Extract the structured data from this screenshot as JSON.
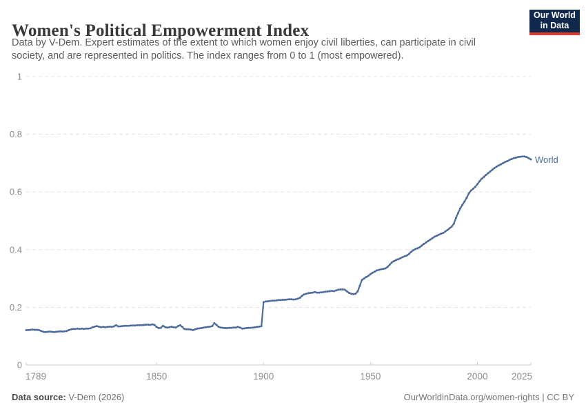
{
  "header": {
    "title": "Women's Political Empowerment Index",
    "subtitle": "Data by V-Dem. Expert estimates of the extent to which women enjoy civil liberties, can participate in civil society, and are represented in politics. The index ranges from 0 to 1 (most empowered).",
    "logo": {
      "line1": "Our World",
      "line2": "in Data"
    }
  },
  "footer": {
    "source_label": "Data source:",
    "source_value": " V-Dem (2026)",
    "credit": "OurWorldinData.org/women-rights | CC BY"
  },
  "colors": {
    "line": "#4C6A9C",
    "grid": "#e1e1e1",
    "axis": "#c9c9c9",
    "tick_label": "#8c8c8c",
    "logo_bg": "#12294E",
    "logo_accent": "#E0392E"
  },
  "chart_data": {
    "type": "line",
    "title": "Women's Political Empowerment Index",
    "xlabel": "",
    "ylabel": "",
    "xlim": [
      1789,
      2025
    ],
    "ylim": [
      0,
      1
    ],
    "grid": "horizontal-dashed",
    "legend_position": "end-of-line",
    "xticks": [
      1789,
      1850,
      1900,
      1950,
      2000,
      2025
    ],
    "xtick_labels": [
      "1789",
      "1850",
      "1900",
      "1950",
      "2000",
      "2025"
    ],
    "yticks": [
      0,
      0.2,
      0.4,
      0.6,
      0.8,
      1
    ],
    "ytick_labels": [
      "0",
      "0.2",
      "0.4",
      "0.6",
      "0.8",
      "1"
    ],
    "series": [
      {
        "name": "World",
        "points": [
          [
            1789,
            0.121
          ],
          [
            1790,
            0.121
          ],
          [
            1791,
            0.122
          ],
          [
            1792,
            0.123
          ],
          [
            1793,
            0.122
          ],
          [
            1794,
            0.122
          ],
          [
            1795,
            0.121
          ],
          [
            1796,
            0.118
          ],
          [
            1797,
            0.115
          ],
          [
            1798,
            0.114
          ],
          [
            1799,
            0.115
          ],
          [
            1800,
            0.116
          ],
          [
            1801,
            0.115
          ],
          [
            1802,
            0.114
          ],
          [
            1803,
            0.115
          ],
          [
            1804,
            0.116
          ],
          [
            1805,
            0.117
          ],
          [
            1806,
            0.116
          ],
          [
            1807,
            0.117
          ],
          [
            1808,
            0.118
          ],
          [
            1809,
            0.121
          ],
          [
            1810,
            0.124
          ],
          [
            1811,
            0.125
          ],
          [
            1812,
            0.125
          ],
          [
            1813,
            0.126
          ],
          [
            1814,
            0.125
          ],
          [
            1815,
            0.126
          ],
          [
            1816,
            0.125
          ],
          [
            1817,
            0.126
          ],
          [
            1818,
            0.126
          ],
          [
            1819,
            0.127
          ],
          [
            1820,
            0.131
          ],
          [
            1821,
            0.133
          ],
          [
            1822,
            0.135
          ],
          [
            1823,
            0.133
          ],
          [
            1824,
            0.131
          ],
          [
            1825,
            0.132
          ],
          [
            1826,
            0.131
          ],
          [
            1827,
            0.132
          ],
          [
            1828,
            0.133
          ],
          [
            1829,
            0.132
          ],
          [
            1830,
            0.134
          ],
          [
            1831,
            0.138
          ],
          [
            1832,
            0.134
          ],
          [
            1833,
            0.134
          ],
          [
            1834,
            0.135
          ],
          [
            1835,
            0.136
          ],
          [
            1836,
            0.136
          ],
          [
            1837,
            0.136
          ],
          [
            1838,
            0.137
          ],
          [
            1839,
            0.137
          ],
          [
            1840,
            0.137
          ],
          [
            1841,
            0.138
          ],
          [
            1842,
            0.138
          ],
          [
            1843,
            0.138
          ],
          [
            1844,
            0.139
          ],
          [
            1845,
            0.14
          ],
          [
            1846,
            0.14
          ],
          [
            1847,
            0.139
          ],
          [
            1848,
            0.141
          ],
          [
            1849,
            0.139
          ],
          [
            1850,
            0.132
          ],
          [
            1851,
            0.128
          ],
          [
            1852,
            0.129
          ],
          [
            1853,
            0.136
          ],
          [
            1854,
            0.131
          ],
          [
            1855,
            0.13
          ],
          [
            1856,
            0.131
          ],
          [
            1857,
            0.133
          ],
          [
            1858,
            0.131
          ],
          [
            1859,
            0.13
          ],
          [
            1860,
            0.135
          ],
          [
            1861,
            0.138
          ],
          [
            1862,
            0.132
          ],
          [
            1863,
            0.125
          ],
          [
            1864,
            0.124
          ],
          [
            1865,
            0.124
          ],
          [
            1866,
            0.123
          ],
          [
            1867,
            0.121
          ],
          [
            1868,
            0.124
          ],
          [
            1869,
            0.126
          ],
          [
            1870,
            0.127
          ],
          [
            1871,
            0.128
          ],
          [
            1872,
            0.13
          ],
          [
            1873,
            0.131
          ],
          [
            1874,
            0.132
          ],
          [
            1875,
            0.133
          ],
          [
            1876,
            0.135
          ],
          [
            1877,
            0.145
          ],
          [
            1878,
            0.139
          ],
          [
            1879,
            0.132
          ],
          [
            1880,
            0.13
          ],
          [
            1881,
            0.129
          ],
          [
            1882,
            0.128
          ],
          [
            1883,
            0.128
          ],
          [
            1884,
            0.129
          ],
          [
            1885,
            0.129
          ],
          [
            1886,
            0.13
          ],
          [
            1887,
            0.13
          ],
          [
            1888,
            0.132
          ],
          [
            1889,
            0.13
          ],
          [
            1890,
            0.126
          ],
          [
            1891,
            0.127
          ],
          [
            1892,
            0.128
          ],
          [
            1893,
            0.129
          ],
          [
            1894,
            0.129
          ],
          [
            1895,
            0.13
          ],
          [
            1896,
            0.131
          ],
          [
            1897,
            0.132
          ],
          [
            1898,
            0.133
          ],
          [
            1899,
            0.135
          ],
          [
            1900,
            0.218
          ],
          [
            1901,
            0.22
          ],
          [
            1902,
            0.221
          ],
          [
            1903,
            0.222
          ],
          [
            1904,
            0.223
          ],
          [
            1905,
            0.223
          ],
          [
            1906,
            0.224
          ],
          [
            1907,
            0.225
          ],
          [
            1908,
            0.225
          ],
          [
            1909,
            0.226
          ],
          [
            1910,
            0.226
          ],
          [
            1911,
            0.227
          ],
          [
            1912,
            0.228
          ],
          [
            1913,
            0.228
          ],
          [
            1914,
            0.227
          ],
          [
            1915,
            0.228
          ],
          [
            1916,
            0.23
          ],
          [
            1917,
            0.233
          ],
          [
            1918,
            0.24
          ],
          [
            1919,
            0.245
          ],
          [
            1920,
            0.247
          ],
          [
            1921,
            0.249
          ],
          [
            1922,
            0.25
          ],
          [
            1923,
            0.251
          ],
          [
            1924,
            0.253
          ],
          [
            1925,
            0.251
          ],
          [
            1926,
            0.251
          ],
          [
            1927,
            0.252
          ],
          [
            1928,
            0.253
          ],
          [
            1929,
            0.254
          ],
          [
            1930,
            0.255
          ],
          [
            1931,
            0.256
          ],
          [
            1932,
            0.257
          ],
          [
            1933,
            0.256
          ],
          [
            1934,
            0.259
          ],
          [
            1935,
            0.261
          ],
          [
            1936,
            0.262
          ],
          [
            1937,
            0.262
          ],
          [
            1938,
            0.261
          ],
          [
            1939,
            0.255
          ],
          [
            1940,
            0.25
          ],
          [
            1941,
            0.247
          ],
          [
            1942,
            0.246
          ],
          [
            1943,
            0.247
          ],
          [
            1944,
            0.255
          ],
          [
            1945,
            0.275
          ],
          [
            1946,
            0.295
          ],
          [
            1947,
            0.3
          ],
          [
            1948,
            0.305
          ],
          [
            1949,
            0.309
          ],
          [
            1950,
            0.315
          ],
          [
            1951,
            0.32
          ],
          [
            1952,
            0.324
          ],
          [
            1953,
            0.328
          ],
          [
            1954,
            0.33
          ],
          [
            1955,
            0.332
          ],
          [
            1956,
            0.333
          ],
          [
            1957,
            0.335
          ],
          [
            1958,
            0.34
          ],
          [
            1959,
            0.348
          ],
          [
            1960,
            0.356
          ],
          [
            1961,
            0.36
          ],
          [
            1962,
            0.364
          ],
          [
            1963,
            0.367
          ],
          [
            1964,
            0.37
          ],
          [
            1965,
            0.374
          ],
          [
            1966,
            0.377
          ],
          [
            1967,
            0.38
          ],
          [
            1968,
            0.385
          ],
          [
            1969,
            0.392
          ],
          [
            1970,
            0.398
          ],
          [
            1971,
            0.402
          ],
          [
            1972,
            0.405
          ],
          [
            1973,
            0.408
          ],
          [
            1974,
            0.414
          ],
          [
            1975,
            0.42
          ],
          [
            1976,
            0.425
          ],
          [
            1977,
            0.43
          ],
          [
            1978,
            0.435
          ],
          [
            1979,
            0.44
          ],
          [
            1980,
            0.445
          ],
          [
            1981,
            0.448
          ],
          [
            1982,
            0.452
          ],
          [
            1983,
            0.455
          ],
          [
            1984,
            0.458
          ],
          [
            1985,
            0.463
          ],
          [
            1986,
            0.468
          ],
          [
            1987,
            0.474
          ],
          [
            1988,
            0.48
          ],
          [
            1989,
            0.49
          ],
          [
            1990,
            0.51
          ],
          [
            1991,
            0.527
          ],
          [
            1992,
            0.543
          ],
          [
            1993,
            0.555
          ],
          [
            1994,
            0.567
          ],
          [
            1995,
            0.58
          ],
          [
            1996,
            0.595
          ],
          [
            1997,
            0.605
          ],
          [
            1998,
            0.611
          ],
          [
            1999,
            0.618
          ],
          [
            2000,
            0.627
          ],
          [
            2001,
            0.637
          ],
          [
            2002,
            0.646
          ],
          [
            2003,
            0.652
          ],
          [
            2004,
            0.659
          ],
          [
            2005,
            0.665
          ],
          [
            2006,
            0.671
          ],
          [
            2007,
            0.677
          ],
          [
            2008,
            0.683
          ],
          [
            2009,
            0.688
          ],
          [
            2010,
            0.692
          ],
          [
            2011,
            0.696
          ],
          [
            2012,
            0.7
          ],
          [
            2013,
            0.704
          ],
          [
            2014,
            0.707
          ],
          [
            2015,
            0.711
          ],
          [
            2016,
            0.714
          ],
          [
            2017,
            0.717
          ],
          [
            2018,
            0.719
          ],
          [
            2019,
            0.721
          ],
          [
            2020,
            0.722
          ],
          [
            2021,
            0.723
          ],
          [
            2022,
            0.723
          ],
          [
            2023,
            0.721
          ],
          [
            2024,
            0.717
          ],
          [
            2025,
            0.713
          ]
        ]
      }
    ],
    "end_label": "World"
  }
}
